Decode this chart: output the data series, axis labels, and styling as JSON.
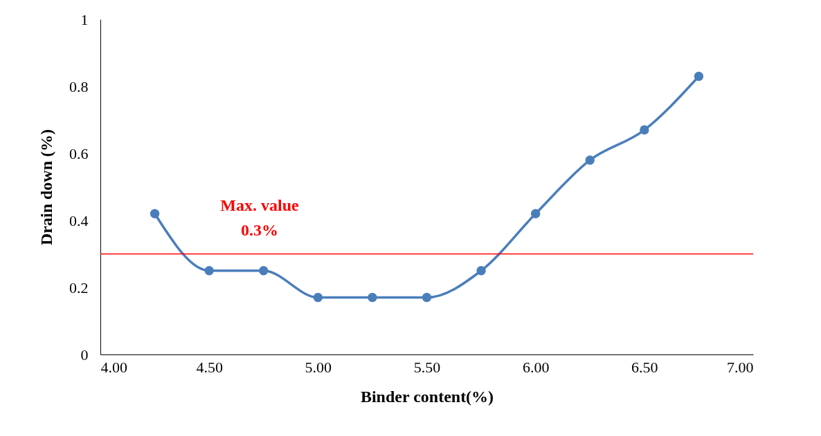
{
  "chart_data": {
    "type": "line",
    "xlabel": "Binder content(%)",
    "ylabel": "Drain down (%)",
    "x": [
      4.25,
      4.5,
      4.75,
      5.0,
      5.25,
      5.5,
      5.75,
      6.0,
      6.25,
      6.5,
      6.75
    ],
    "series": [
      {
        "color": "#4a7ebb",
        "values": [
          0.42,
          0.25,
          0.25,
          0.17,
          0.17,
          0.17,
          0.25,
          0.42,
          0.58,
          0.67,
          0.83
        ]
      }
    ],
    "xlim": [
      4,
      7
    ],
    "xticks": [
      {
        "value": 4,
        "label": "4.00"
      },
      {
        "value": 4.5,
        "label": "4.50"
      },
      {
        "value": 5,
        "label": "5.00"
      },
      {
        "value": 5.5,
        "label": "5.50"
      },
      {
        "value": 6,
        "label": "6.00"
      },
      {
        "value": 6.5,
        "label": "6.50"
      },
      {
        "value": 7,
        "label": "7.00"
      }
    ],
    "ylim": [
      0,
      1
    ],
    "yticks": [
      0,
      0.2,
      0.4,
      0.6,
      0.8,
      1
    ],
    "ref_lines": [
      {
        "axis": "y",
        "value": 0.3,
        "label": "Max. value 0.3%",
        "color": "#ff0000"
      }
    ],
    "marker": "circle",
    "grid": false
  }
}
